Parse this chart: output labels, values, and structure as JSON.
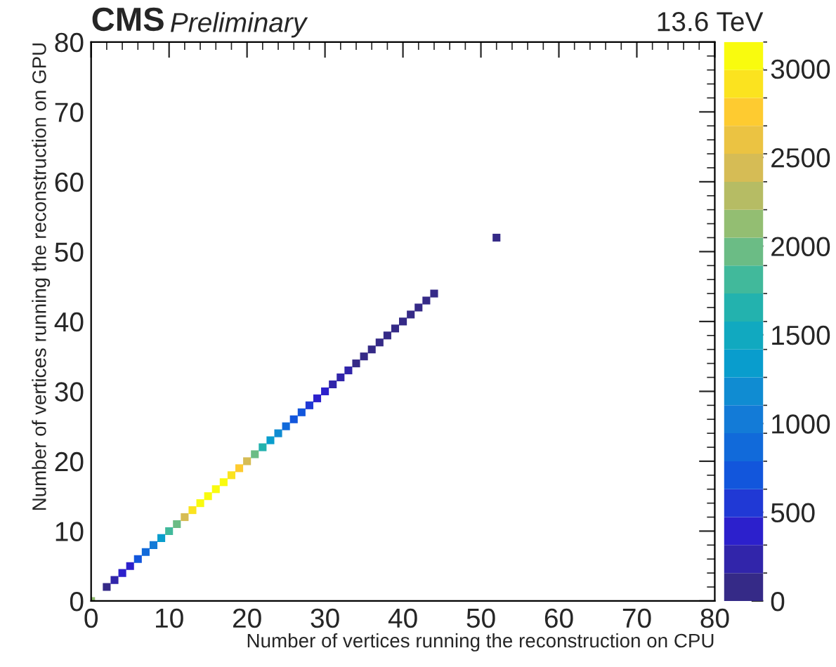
{
  "chart_data": {
    "type": "scatter",
    "title": "CMS",
    "subtitle": "Preliminary",
    "annotations": [
      "13.6 TeV"
    ],
    "xlabel": "Number of vertices running the reconstruction on CPU",
    "ylabel": "Number of vertices running the reconstruction on GPU",
    "x": [
      0,
      2,
      3,
      4,
      5,
      6,
      7,
      8,
      9,
      10,
      11,
      12,
      13,
      14,
      15,
      16,
      17,
      18,
      19,
      20,
      21,
      22,
      23,
      24,
      25,
      26,
      27,
      28,
      29,
      30,
      31,
      32,
      33,
      34,
      35,
      36,
      37,
      38,
      39,
      40,
      41,
      42,
      43,
      44,
      52
    ],
    "values": [
      0,
      2,
      3,
      4,
      5,
      6,
      7,
      8,
      9,
      10,
      11,
      12,
      13,
      14,
      15,
      16,
      17,
      18,
      19,
      20,
      21,
      22,
      23,
      24,
      25,
      26,
      27,
      28,
      29,
      30,
      31,
      32,
      33,
      34,
      35,
      36,
      37,
      38,
      39,
      40,
      41,
      42,
      43,
      44,
      52
    ],
    "cvalues": [
      2200,
      150,
      250,
      350,
      450,
      650,
      800,
      1000,
      1300,
      1800,
      2000,
      2500,
      2900,
      3000,
      3050,
      3100,
      3100,
      2950,
      2750,
      2400,
      2000,
      1600,
      1350,
      1150,
      900,
      750,
      650,
      550,
      450,
      350,
      300,
      250,
      200,
      150,
      120,
      100,
      80,
      60,
      50,
      40,
      30,
      20,
      15,
      10,
      5
    ],
    "marker": "square",
    "grid": false,
    "xlim": [
      0,
      80
    ],
    "ylim": [
      0,
      80
    ],
    "xticks": [
      0,
      10,
      20,
      30,
      40,
      50,
      60,
      70,
      80
    ],
    "yticks": [
      0,
      10,
      20,
      30,
      40,
      50,
      60,
      70,
      80
    ],
    "clim": [
      0,
      3150
    ],
    "cticks": [
      0,
      500,
      1000,
      1500,
      2000,
      2500,
      3000
    ]
  }
}
